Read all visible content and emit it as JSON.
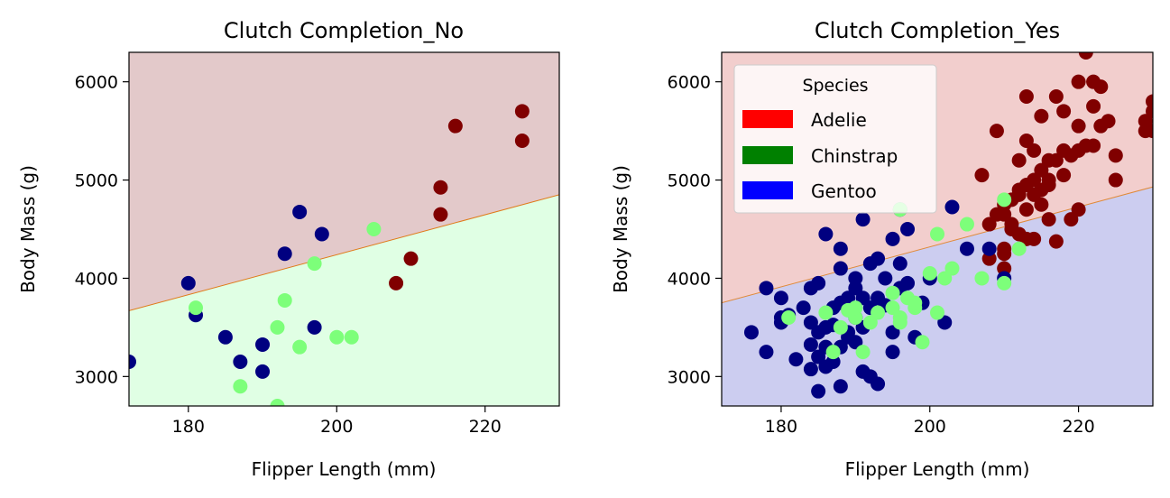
{
  "chart_data": [
    {
      "type": "scatter",
      "title": "Clutch Completion_No",
      "xlabel": "Flipper Length (mm)",
      "ylabel": "Body Mass (g)",
      "xlim": [
        172,
        230
      ],
      "ylim": [
        2700,
        6300
      ],
      "xticks": [
        180,
        200,
        220
      ],
      "yticks": [
        3000,
        4000,
        5000,
        6000
      ],
      "grid": false,
      "regions": {
        "boundary": [
          [
            172,
            3670
          ],
          [
            230,
            4850
          ]
        ],
        "above_color": "#e3c9ca",
        "below_color": "#e0ffe4",
        "line_color": "#e07a1a"
      },
      "series": [
        {
          "color": "#800000",
          "points": [
            [
              208,
              3950
            ],
            [
              210,
              4200
            ],
            [
              214,
              4650
            ],
            [
              214,
              4925
            ],
            [
              216,
              5550
            ],
            [
              225,
              5400
            ],
            [
              225,
              5700
            ]
          ]
        },
        {
          "color": "#000080",
          "points": [
            [
              172,
              3150
            ],
            [
              180,
              3950
            ],
            [
              181,
              3625
            ],
            [
              185,
              3400
            ],
            [
              187,
              3150
            ],
            [
              190,
              3325
            ],
            [
              190,
              3050
            ],
            [
              193,
              4250
            ],
            [
              195,
              4675
            ],
            [
              197,
              3500
            ],
            [
              198,
              4450
            ]
          ]
        },
        {
          "color": "#7dff7a",
          "points": [
            [
              181,
              3700
            ],
            [
              187,
              2900
            ],
            [
              192,
              2700
            ],
            [
              192,
              3500
            ],
            [
              193,
              3775
            ],
            [
              195,
              3300
            ],
            [
              197,
              4150
            ],
            [
              200,
              3400
            ],
            [
              202,
              3400
            ],
            [
              205,
              4500
            ]
          ]
        }
      ]
    },
    {
      "type": "scatter",
      "title": "Clutch Completion_Yes",
      "xlabel": "Flipper Length (mm)",
      "ylabel": "Body Mass (g)",
      "xlim": [
        172,
        230
      ],
      "ylim": [
        2700,
        6300
      ],
      "xticks": [
        180,
        200,
        220
      ],
      "yticks": [
        3000,
        4000,
        5000,
        6000
      ],
      "grid": false,
      "regions": {
        "boundary": [
          [
            172,
            3750
          ],
          [
            230,
            4930
          ]
        ],
        "above_color": "#f2cecd",
        "below_color": "#cccdf0",
        "line_color": "#e08a3a"
      },
      "legend": {
        "title": "Species",
        "position": "upper-left",
        "entries": [
          {
            "label": "Adelie",
            "color": "#ff0000"
          },
          {
            "label": "Chinstrap",
            "color": "#008000"
          },
          {
            "label": "Gentoo",
            "color": "#0000ff"
          }
        ]
      },
      "series": [
        {
          "color": "#800000",
          "points": [
            [
              207,
              5050
            ],
            [
              208,
              4200
            ],
            [
              208,
              4550
            ],
            [
              209,
              5500
            ],
            [
              209,
              4650
            ],
            [
              210,
              4300
            ],
            [
              210,
              4100
            ],
            [
              210,
              4650
            ],
            [
              210,
              4250
            ],
            [
              210,
              4750
            ],
            [
              211,
              4550
            ],
            [
              211,
              4800
            ],
            [
              211,
              4500
            ],
            [
              212,
              4850
            ],
            [
              212,
              4900
            ],
            [
              212,
              5200
            ],
            [
              212,
              4450
            ],
            [
              213,
              5400
            ],
            [
              213,
              5850
            ],
            [
              213,
              4950
            ],
            [
              213,
              4700
            ],
            [
              213,
              4400
            ],
            [
              214,
              5300
            ],
            [
              214,
              5000
            ],
            [
              214,
              4850
            ],
            [
              214,
              4400
            ],
            [
              215,
              5650
            ],
            [
              215,
              5100
            ],
            [
              215,
              4900
            ],
            [
              215,
              4750
            ],
            [
              216,
              5200
            ],
            [
              216,
              4950
            ],
            [
              216,
              4600
            ],
            [
              216,
              5000
            ],
            [
              217,
              5850
            ],
            [
              217,
              5200
            ],
            [
              217,
              4375
            ],
            [
              218,
              5700
            ],
            [
              218,
              5300
            ],
            [
              218,
              5050
            ],
            [
              219,
              5250
            ],
            [
              219,
              4600
            ],
            [
              220,
              6000
            ],
            [
              220,
              5550
            ],
            [
              220,
              5300
            ],
            [
              220,
              4700
            ],
            [
              221,
              6300
            ],
            [
              221,
              5350
            ],
            [
              222,
              6000
            ],
            [
              222,
              5750
            ],
            [
              222,
              5350
            ],
            [
              223,
              5550
            ],
            [
              223,
              5950
            ],
            [
              224,
              5600
            ],
            [
              225,
              5250
            ],
            [
              225,
              5000
            ],
            [
              229,
              5600
            ],
            [
              229,
              5500
            ],
            [
              230,
              5700
            ],
            [
              230,
              5800
            ],
            [
              230,
              5500
            ]
          ]
        },
        {
          "color": "#000080",
          "points": [
            [
              176,
              3450
            ],
            [
              178,
              3900
            ],
            [
              178,
              3250
            ],
            [
              180,
              3800
            ],
            [
              180,
              3600
            ],
            [
              180,
              3550
            ],
            [
              181,
              3625
            ],
            [
              182,
              3175
            ],
            [
              183,
              3700
            ],
            [
              184,
              3075
            ],
            [
              184,
              3900
            ],
            [
              184,
              3550
            ],
            [
              184,
              3325
            ],
            [
              185,
              2850
            ],
            [
              185,
              3450
            ],
            [
              185,
              3950
            ],
            [
              185,
              3200
            ],
            [
              186,
              3500
            ],
            [
              186,
              3100
            ],
            [
              186,
              4450
            ],
            [
              186,
              3300
            ],
            [
              187,
              3150
            ],
            [
              187,
              3700
            ],
            [
              187,
              3525
            ],
            [
              188,
              3300
            ],
            [
              188,
              3750
            ],
            [
              188,
              4300
            ],
            [
              188,
              2900
            ],
            [
              188,
              4100
            ],
            [
              189,
              3450
            ],
            [
              189,
              3400
            ],
            [
              189,
              3800
            ],
            [
              190,
              3600
            ],
            [
              190,
              4000
            ],
            [
              190,
              3350
            ],
            [
              190,
              3900
            ],
            [
              191,
              4600
            ],
            [
              191,
              3800
            ],
            [
              191,
              3500
            ],
            [
              191,
              3050
            ],
            [
              192,
              4150
            ],
            [
              192,
              3000
            ],
            [
              192,
              3700
            ],
            [
              193,
              3800
            ],
            [
              193,
              4200
            ],
            [
              193,
              2925
            ],
            [
              194,
              4000
            ],
            [
              194,
              3725
            ],
            [
              195,
              4400
            ],
            [
              195,
              3450
            ],
            [
              195,
              3250
            ],
            [
              196,
              4700
            ],
            [
              196,
              3900
            ],
            [
              196,
              4150
            ],
            [
              197,
              3950
            ],
            [
              197,
              4500
            ],
            [
              198,
              3400
            ],
            [
              199,
              3750
            ],
            [
              200,
              4000
            ],
            [
              202,
              3550
            ],
            [
              203,
              4725
            ],
            [
              205,
              4300
            ],
            [
              208,
              4300
            ],
            [
              210,
              4000
            ]
          ]
        },
        {
          "color": "#7dff7a",
          "points": [
            [
              181,
              3600
            ],
            [
              186,
              3650
            ],
            [
              187,
              3250
            ],
            [
              188,
              3500
            ],
            [
              189,
              3675
            ],
            [
              190,
              3600
            ],
            [
              190,
              3700
            ],
            [
              191,
              3250
            ],
            [
              192,
              3550
            ],
            [
              193,
              3650
            ],
            [
              195,
              3700
            ],
            [
              195,
              3850
            ],
            [
              196,
              3600
            ],
            [
              196,
              3550
            ],
            [
              196,
              4700
            ],
            [
              197,
              3800
            ],
            [
              198,
              3700
            ],
            [
              198,
              3750
            ],
            [
              199,
              3350
            ],
            [
              200,
              4050
            ],
            [
              201,
              4450
            ],
            [
              201,
              3650
            ],
            [
              202,
              4000
            ],
            [
              203,
              4100
            ],
            [
              205,
              4550
            ],
            [
              207,
              4000
            ],
            [
              210,
              3950
            ],
            [
              210,
              4800
            ],
            [
              212,
              4300
            ]
          ]
        }
      ]
    }
  ]
}
